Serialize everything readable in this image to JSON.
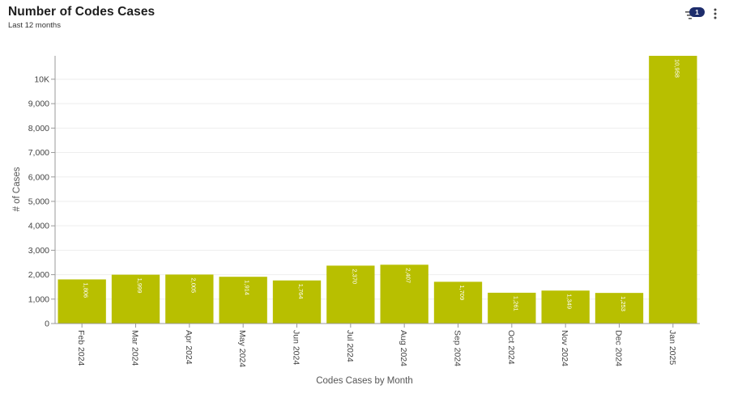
{
  "header": {
    "title": "Number of Codes Cases",
    "subtitle": "Last 12 months",
    "filter_count": "1"
  },
  "colors": {
    "bar": "#b8bf00",
    "badge": "#1d2c6b",
    "grid": "#eeeeee"
  },
  "chart_data": {
    "type": "bar",
    "title": "Number of Codes Cases",
    "subtitle": "Last 12 months",
    "xlabel": "Codes Cases by Month",
    "ylabel": "# of Cases",
    "categories": [
      "Feb 2024",
      "Mar 2024",
      "Apr 2024",
      "May 2024",
      "Jun 2024",
      "Jul 2024",
      "Aug 2024",
      "Sep 2024",
      "Oct 2024",
      "Nov 2024",
      "Dec 2024",
      "Jan 2025"
    ],
    "values": [
      1806,
      1999,
      2005,
      1914,
      1764,
      2370,
      2407,
      1709,
      1261,
      1349,
      1253,
      10958
    ],
    "value_labels": [
      "1,806",
      "1,999",
      "2,005",
      "1,914",
      "1,764",
      "2,370",
      "2,407",
      "1,709",
      "1,261",
      "1,349",
      "1,253",
      "10,958"
    ],
    "yticks": [
      0,
      1000,
      2000,
      3000,
      4000,
      5000,
      6000,
      7000,
      8000,
      9000,
      10000
    ],
    "ytick_labels": [
      "0",
      "1,000",
      "2,000",
      "3,000",
      "4,000",
      "5,000",
      "6,000",
      "7,000",
      "8,000",
      "9,000",
      "10K"
    ],
    "ylim": [
      0,
      10958
    ],
    "grid": true,
    "legend": "none"
  }
}
